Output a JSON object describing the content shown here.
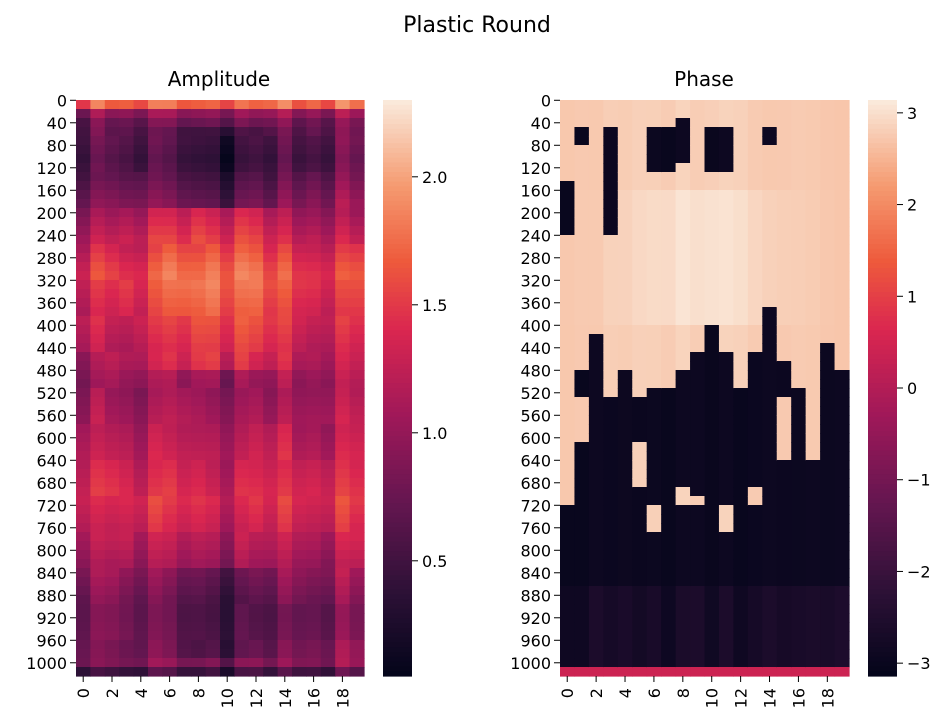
{
  "figure": {
    "title": "Plastic Round"
  },
  "chart_data": [
    {
      "type": "heatmap",
      "title": "Amplitude",
      "x_ticks": [
        "0",
        "2",
        "4",
        "6",
        "8",
        "10",
        "12",
        "14",
        "16",
        "18"
      ],
      "y_ticks": [
        "0",
        "40",
        "80",
        "120",
        "160",
        "200",
        "240",
        "280",
        "320",
        "360",
        "400",
        "440",
        "480",
        "520",
        "560",
        "600",
        "640",
        "680",
        "720",
        "760",
        "800",
        "840",
        "880",
        "920",
        "960",
        "1000"
      ],
      "n_cols": 20,
      "n_rows": 1024,
      "colorbar": {
        "range": [
          0.05,
          2.3
        ],
        "ticks": [
          "0.5",
          "1.0",
          "1.5",
          "2.0"
        ],
        "tick_values": [
          0.5,
          1.0,
          1.5,
          2.0
        ]
      },
      "colormap": "rocket",
      "approx_profile": {
        "rows": [
          0,
          20,
          100,
          300,
          500,
          600,
          700,
          780,
          900,
          1000,
          1015,
          1023
        ],
        "values": [
          1.7,
          0.8,
          0.6,
          1.5,
          1.0,
          1.2,
          1.4,
          1.2,
          0.8,
          0.9,
          0.15,
          1.6
        ]
      }
    },
    {
      "type": "heatmap",
      "title": "Phase",
      "x_ticks": [
        "0",
        "2",
        "4",
        "6",
        "8",
        "10",
        "12",
        "14",
        "16",
        "18"
      ],
      "y_ticks": [
        "0",
        "40",
        "80",
        "120",
        "160",
        "200",
        "240",
        "280",
        "320",
        "360",
        "400",
        "440",
        "480",
        "520",
        "560",
        "600",
        "640",
        "680",
        "720",
        "760",
        "800",
        "840",
        "880",
        "920",
        "960",
        "1000"
      ],
      "n_cols": 20,
      "n_rows": 1024,
      "colorbar": {
        "range": [
          -3.14,
          3.14
        ],
        "ticks": [
          "3",
          "2",
          "1",
          "0",
          "−1",
          "−2",
          "−3"
        ],
        "tick_values": [
          3,
          2,
          1,
          0,
          -1,
          -2,
          -3
        ]
      },
      "colormap": "rocket",
      "approx_profile": {
        "rows": [
          0,
          30,
          400,
          460,
          600,
          700,
          1000,
          1023
        ],
        "values": [
          2.9,
          2.8,
          2.8,
          2.8,
          -2.9,
          -3.0,
          -2.6,
          0.2
        ]
      }
    }
  ]
}
